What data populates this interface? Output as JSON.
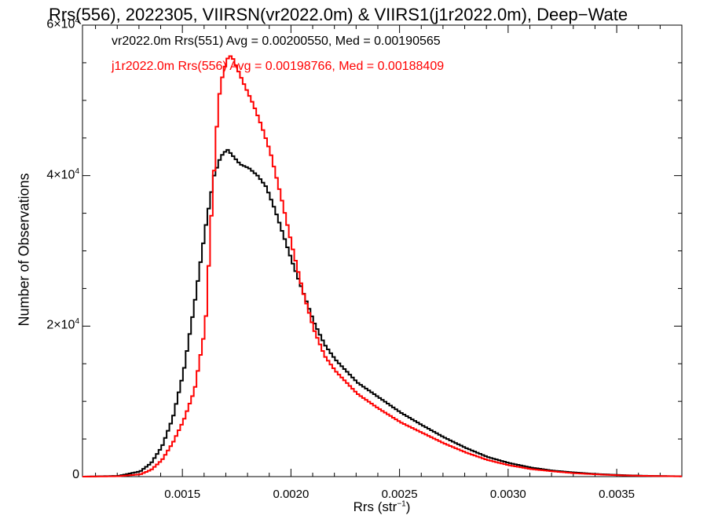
{
  "chart_data": {
    "type": "line",
    "step": true,
    "title": "Rrs(556), 2022305, VIIRSN(vr2022.0m) & VIIRS1(j1r2022.0m), Deep−Wate",
    "xlabel_base": "Rrs (str",
    "xlabel_sup": "−1",
    "xlabel_close": ")",
    "ylabel": "Number of Observations",
    "xlim": [
      0.00104,
      0.0038
    ],
    "ylim": [
      0,
      60000
    ],
    "x_ticks": [
      "0.0015",
      "0.0020",
      "0.0025",
      "0.0030",
      "0.0035"
    ],
    "x_tick_values": [
      0.0015,
      0.002,
      0.0025,
      0.003,
      0.0035
    ],
    "y_ticks": [
      {
        "value": 60000,
        "mantissa": "6×10",
        "exp": "4"
      },
      {
        "value": 40000,
        "mantissa": "4×10",
        "exp": "4"
      },
      {
        "value": 20000,
        "mantissa": "2×10",
        "exp": "4"
      },
      {
        "value": 0,
        "mantissa": "0",
        "exp": ""
      }
    ],
    "grid": false,
    "legend_position": "top-left",
    "series": [
      {
        "name": "vr2022.0m Rrs(551) Avg = 0.00200550, Med = 0.00190565",
        "color": "#000000",
        "x": [
          0.00104,
          0.0012,
          0.0013,
          0.00135,
          0.0014,
          0.00145,
          0.0015,
          0.00155,
          0.0016,
          0.00164,
          0.00167,
          0.0017,
          0.00173,
          0.00176,
          0.0018,
          0.00184,
          0.00188,
          0.00192,
          0.00196,
          0.002,
          0.00205,
          0.0021,
          0.00215,
          0.0022,
          0.0023,
          0.0024,
          0.0025,
          0.0026,
          0.0027,
          0.0028,
          0.0029,
          0.003,
          0.0031,
          0.0032,
          0.0033,
          0.0034,
          0.0035,
          0.0036,
          0.0037,
          0.0038
        ],
        "y": [
          0,
          100,
          700,
          1800,
          4000,
          7800,
          14000,
          23000,
          33000,
          40000,
          42500,
          43500,
          42500,
          41500,
          41000,
          40000,
          38500,
          35500,
          32000,
          28500,
          24500,
          20500,
          17500,
          15500,
          12500,
          10500,
          8500,
          6800,
          5200,
          3800,
          2600,
          1800,
          1200,
          800,
          550,
          350,
          220,
          130,
          80,
          40
        ]
      },
      {
        "name": "j1r2022.0m Rrs(556) Avg = 0.00198766, Med = 0.00188409",
        "color": "#ff0000",
        "x": [
          0.00104,
          0.0012,
          0.0013,
          0.00135,
          0.0014,
          0.00145,
          0.0015,
          0.00155,
          0.0016,
          0.00163,
          0.00166,
          0.00168,
          0.0017,
          0.00172,
          0.00175,
          0.00178,
          0.00182,
          0.00186,
          0.0019,
          0.00195,
          0.002,
          0.00205,
          0.0021,
          0.00215,
          0.0022,
          0.0023,
          0.0024,
          0.0025,
          0.0026,
          0.0027,
          0.0028,
          0.0029,
          0.003,
          0.0031,
          0.0032,
          0.0033,
          0.0034,
          0.0035,
          0.0036,
          0.0037,
          0.0038
        ],
        "y": [
          0,
          50,
          300,
          900,
          2200,
          4500,
          7500,
          11500,
          20000,
          36000,
          50000,
          53500,
          55500,
          56000,
          54000,
          52000,
          49500,
          46500,
          43000,
          37000,
          30500,
          24500,
          19500,
          16000,
          14000,
          11000,
          9000,
          7200,
          5800,
          4400,
          3200,
          2200,
          1500,
          1000,
          700,
          450,
          300,
          180,
          110,
          70,
          30
        ]
      }
    ]
  }
}
